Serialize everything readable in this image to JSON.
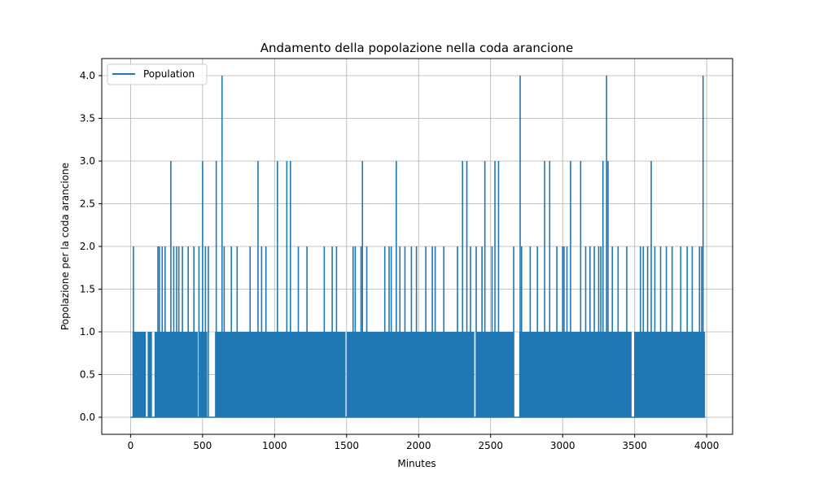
{
  "chart_data": {
    "type": "line",
    "title": "Andamento della popolazione nella coda arancione",
    "xlabel": "Minutes",
    "ylabel": "Popolazione per la coda arancione",
    "xlim": [
      -200,
      4180
    ],
    "ylim": [
      -0.2,
      4.2
    ],
    "xticks": [
      0,
      500,
      1000,
      1500,
      2000,
      2500,
      3000,
      3500,
      4000
    ],
    "xtick_labels": [
      "0",
      "500",
      "1000",
      "1500",
      "2000",
      "2500",
      "3000",
      "3500",
      "4000"
    ],
    "yticks": [
      0.0,
      0.5,
      1.0,
      1.5,
      2.0,
      2.5,
      3.0,
      3.5,
      4.0
    ],
    "ytick_labels": [
      "0.0",
      "0.5",
      "1.0",
      "1.5",
      "2.0",
      "2.5",
      "3.0",
      "3.5",
      "4.0"
    ],
    "grid": true,
    "legend": {
      "position": "top-left",
      "entries": [
        "Population"
      ]
    },
    "series": [
      {
        "name": "Population",
        "color": "#1f77b4",
        "x_range": [
          0,
          3990
        ],
        "spikes_4": [
          635,
          2705,
          3305,
          3975
        ],
        "spikes_3": [
          280,
          500,
          595,
          885,
          1020,
          1085,
          1110,
          1610,
          1845,
          2305,
          2335,
          2460,
          2530,
          2555,
          2875,
          2910,
          3055,
          3125,
          3280,
          3315,
          3615
        ],
        "spikes_2": [
          20,
          190,
          200,
          220,
          240,
          300,
          320,
          335,
          360,
          400,
          440,
          475,
          520,
          540,
          650,
          700,
          740,
          830,
          910,
          940,
          1165,
          1225,
          1345,
          1400,
          1430,
          1545,
          1560,
          1600,
          1640,
          1765,
          1795,
          1810,
          1870,
          1905,
          1950,
          1985,
          2050,
          2095,
          2115,
          2175,
          2270,
          2360,
          2400,
          2440,
          2510,
          2660,
          2715,
          2775,
          2825,
          2960,
          3000,
          3010,
          3030,
          3160,
          3190,
          3220,
          3250,
          3265,
          3345,
          3385,
          3445,
          3540,
          3560,
          3590,
          3640,
          3680,
          3720,
          3760,
          3820,
          3865,
          3900,
          3950,
          3965
        ],
        "gaps": [
          [
            0,
            15
          ],
          [
            105,
            120
          ],
          [
            145,
            170
          ],
          [
            465,
            480
          ],
          [
            530,
            590
          ],
          [
            1490,
            1505
          ],
          [
            2385,
            2400
          ],
          [
            2655,
            2700
          ],
          [
            3475,
            3500
          ],
          [
            3985,
            3990
          ]
        ]
      }
    ]
  }
}
